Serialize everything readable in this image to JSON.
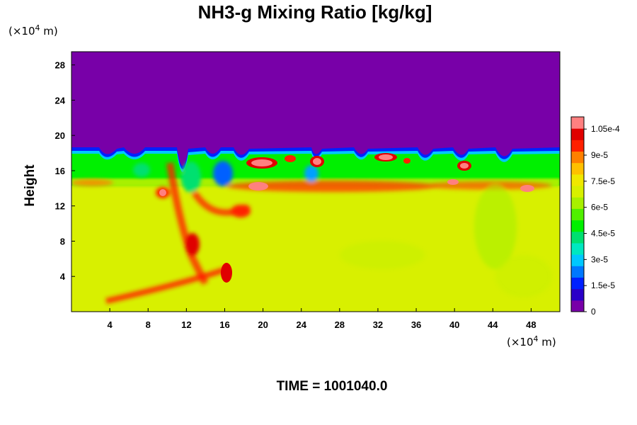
{
  "chart_data": {
    "type": "heatmap",
    "title": "NH3-g Mixing Ratio [kg/kg]",
    "ylabel": "Height",
    "y_unit_prefix": "(×10",
    "y_unit_exp": "4",
    "y_unit_suffix": " m)",
    "x_unit_prefix": "(×10",
    "x_unit_exp": "4",
    "x_unit_suffix": " m)",
    "xlim": [
      0,
      51
    ],
    "ylim": [
      0,
      29.5
    ],
    "x_ticks": [
      4,
      8,
      12,
      16,
      20,
      24,
      28,
      32,
      36,
      40,
      44,
      48
    ],
    "y_ticks": [
      4,
      8,
      12,
      16,
      20,
      24,
      28
    ],
    "colorbar": {
      "min": 0,
      "max": 0.000112,
      "ticks": [
        {
          "value": 0,
          "label": "0"
        },
        {
          "value": 1.5e-05,
          "label": "1.5e-5"
        },
        {
          "value": 3e-05,
          "label": "3e-5"
        },
        {
          "value": 4.5e-05,
          "label": "4.5e-5"
        },
        {
          "value": 6e-05,
          "label": "6e-5"
        },
        {
          "value": 7.5e-05,
          "label": "7.5e-5"
        },
        {
          "value": 9e-05,
          "label": "9e-5"
        },
        {
          "value": 0.000105,
          "label": "1.05e-4"
        }
      ],
      "colors": [
        "#7800a8",
        "#2a00c8",
        "#0020ff",
        "#0078ff",
        "#00c8ff",
        "#00e8c0",
        "#00e070",
        "#00f000",
        "#50f000",
        "#a8f000",
        "#d8f000",
        "#f0e800",
        "#ffc000",
        "#ff8000",
        "#ff2000",
        "#e00000",
        "#ff8080"
      ]
    },
    "field_regions": {
      "upper_layer_value": 0,
      "lower_layer_value": 7.8e-05,
      "mid_band_value": 6e-05,
      "top_of_layer_height": 18.6
    },
    "time_text": "TIME = 1001040.0"
  }
}
